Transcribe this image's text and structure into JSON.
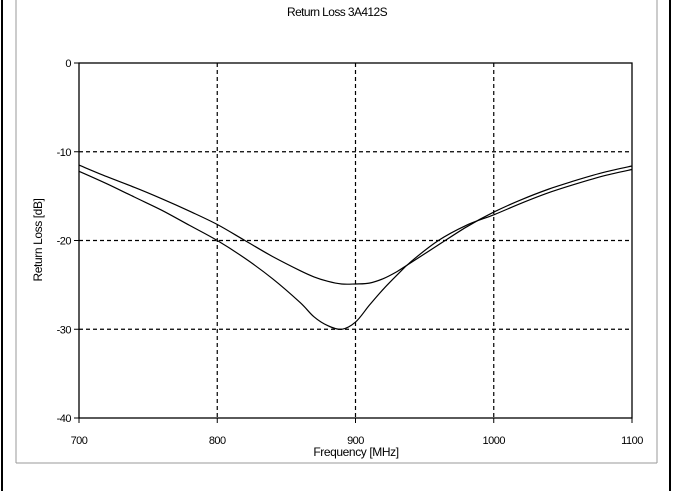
{
  "chart_data": {
    "type": "line",
    "title": "Return Loss 3A412S",
    "xlabel": "Frequency [MHz]",
    "ylabel": "Return Loss [dB]",
    "xlim": [
      700,
      1100
    ],
    "ylim": [
      -40,
      0
    ],
    "x_ticks": [
      700,
      800,
      900,
      1000,
      1100
    ],
    "x_tick_labels": [
      "700",
      "800",
      "900",
      "1000",
      "1100"
    ],
    "y_ticks": [
      0,
      -10,
      -20,
      -30,
      -40
    ],
    "y_tick_labels": [
      "0",
      "-10",
      "-20",
      "-30",
      "-40"
    ],
    "grid": "dashed",
    "legend": "none",
    "line_color": "#000000",
    "x": [
      700,
      720,
      740,
      760,
      780,
      800,
      820,
      840,
      860,
      870,
      880,
      890,
      900,
      910,
      920,
      930,
      940,
      960,
      980,
      1000,
      1020,
      1040,
      1060,
      1080,
      1100
    ],
    "series": [
      {
        "values": [
          -11.5,
          -12.8,
          -14.0,
          -15.3,
          -16.7,
          -18.2,
          -20.0,
          -21.8,
          -23.4,
          -24.1,
          -24.6,
          -24.9,
          -24.9,
          -24.8,
          -24.3,
          -23.5,
          -22.5,
          -20.5,
          -18.5,
          -16.8,
          -15.4,
          -14.2,
          -13.2,
          -12.3,
          -11.6
        ]
      },
      {
        "values": [
          -12.2,
          -13.6,
          -15.1,
          -16.6,
          -18.3,
          -20.0,
          -22.0,
          -24.3,
          -27.0,
          -28.6,
          -29.6,
          -30.0,
          -29.2,
          -27.3,
          -25.5,
          -23.9,
          -22.4,
          -20.0,
          -18.3,
          -17.1,
          -15.8,
          -14.6,
          -13.6,
          -12.7,
          -12.0
        ]
      }
    ]
  }
}
